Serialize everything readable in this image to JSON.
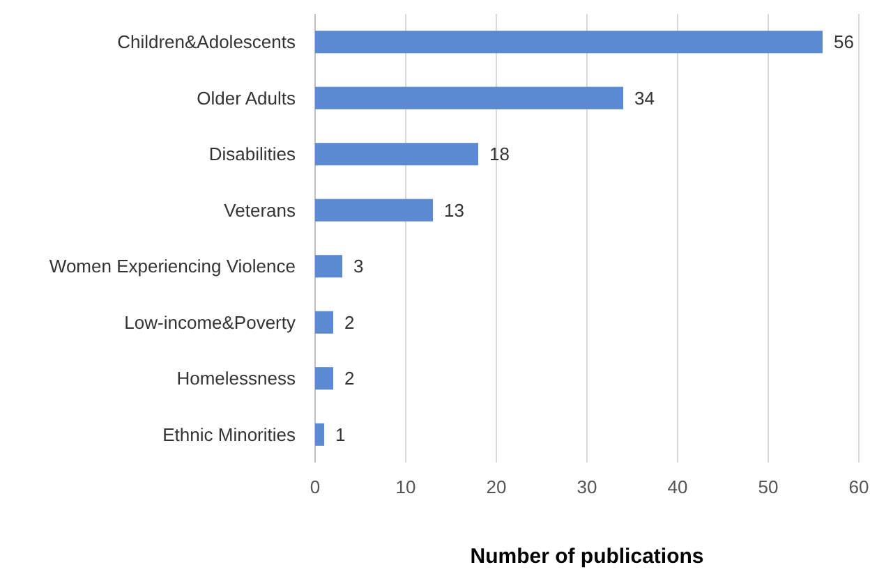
{
  "chart_data": {
    "type": "bar",
    "orientation": "horizontal",
    "xlabel": "Number of publications",
    "categories": [
      "Children&Adolescents",
      "Older Adults",
      "Disabilities",
      "Veterans",
      "Women Experiencing Violence",
      "Low-income&Poverty",
      "Homelessness",
      "Ethnic Minorities"
    ],
    "values": [
      56,
      34,
      18,
      13,
      3,
      2,
      2,
      1
    ],
    "color": "#5b8ad2",
    "xlim": [
      0,
      60
    ],
    "xticks": [
      0,
      10,
      20,
      30,
      40,
      50,
      60
    ],
    "grid": "x",
    "data_labels": true
  }
}
